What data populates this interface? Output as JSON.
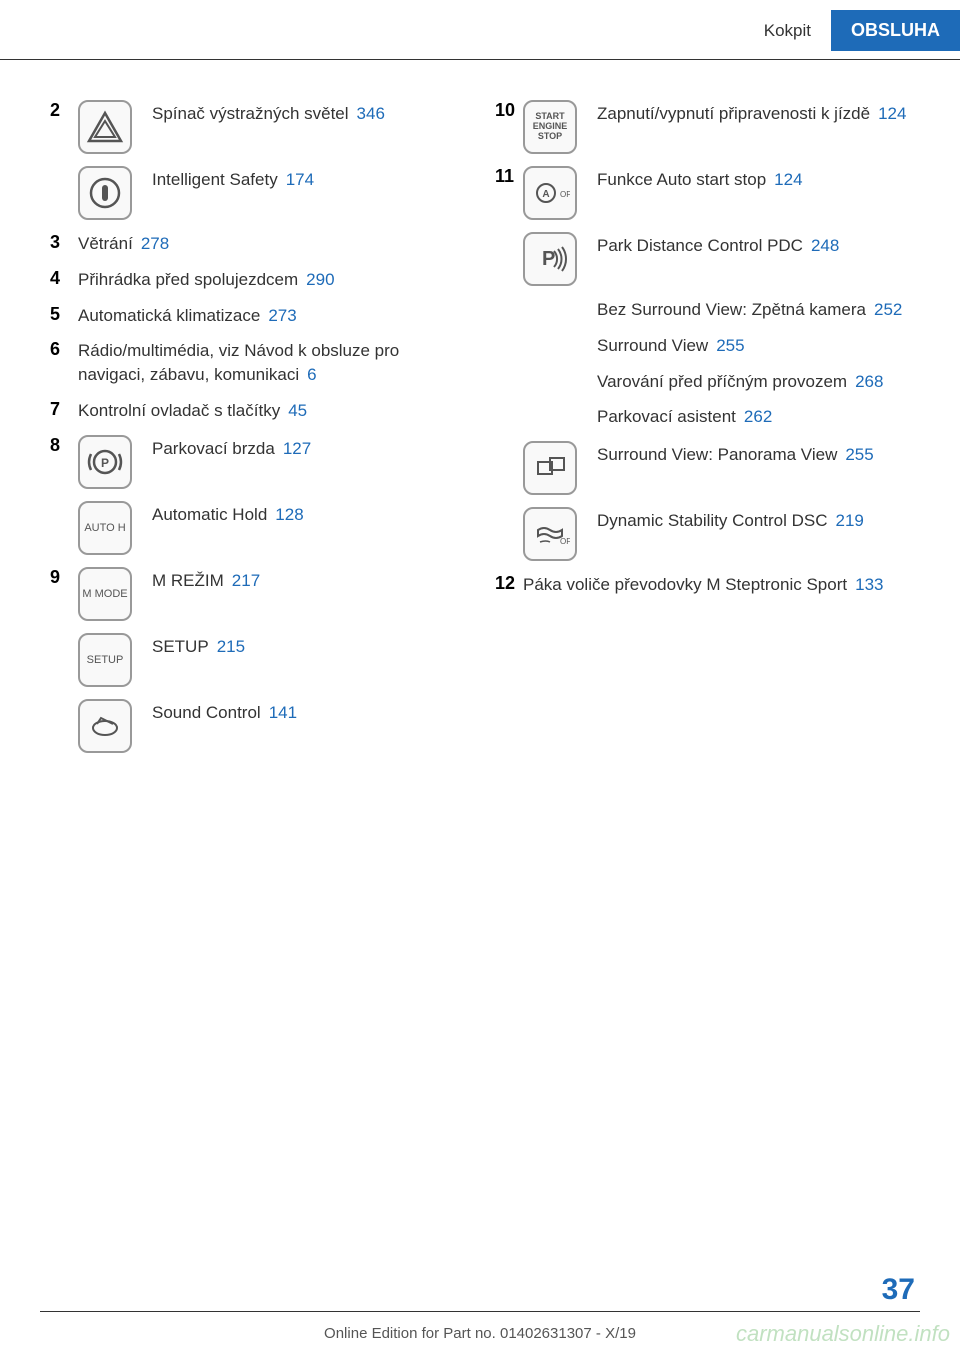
{
  "header": {
    "section": "Kokpit",
    "category": "OBSLUHA"
  },
  "left_column": [
    {
      "num": "2",
      "icon": "hazard-triangle",
      "text": "Spínač výstražných světel",
      "ref": "346"
    },
    {
      "num": "",
      "icon": "safety-circle",
      "text": "Intelligent Safety",
      "ref": "174"
    },
    {
      "num": "3",
      "icon": null,
      "text": "Větrání",
      "ref": "278"
    },
    {
      "num": "4",
      "icon": null,
      "text": "Přihrádka před spolujezdcem",
      "ref": "290"
    },
    {
      "num": "5",
      "icon": null,
      "text": "Automatická klimatizace",
      "ref": "273"
    },
    {
      "num": "6",
      "icon": null,
      "text": "Rádio/multimédia, viz Návod k obsluze pro navigaci, zábavu, komunikaci",
      "ref": "6"
    },
    {
      "num": "7",
      "icon": null,
      "text": "Kontrolní ovladač s tlačítky",
      "ref": "45"
    },
    {
      "num": "8",
      "icon": "parking-brake",
      "text": "Parkovací brzda",
      "ref": "127"
    },
    {
      "num": "",
      "icon": "auto-h",
      "text": "Automatic Hold",
      "ref": "128"
    },
    {
      "num": "9",
      "icon": "m-mode",
      "text": "M REŽIM",
      "ref": "217"
    },
    {
      "num": "",
      "icon": "setup",
      "text": "SETUP",
      "ref": "215"
    },
    {
      "num": "",
      "icon": "sound",
      "text": "Sound Control",
      "ref": "141"
    }
  ],
  "right_column": [
    {
      "num": "10",
      "icon": "start-stop",
      "text": "Zapnutí/vypnutí připravenosti k jízdě",
      "ref": "124"
    },
    {
      "num": "11",
      "icon": "a-off",
      "text": "Funkce Auto start stop",
      "ref": "124"
    },
    {
      "num": "",
      "icon": "pdc",
      "text": "Park Distance Control PDC",
      "ref": "248",
      "subitems": [
        {
          "text": "Bez Surround View: Zpětná ka­mera",
          "ref": "252"
        },
        {
          "text": "Surround View",
          "ref": "255"
        },
        {
          "text": "Varování před příčným provo­zem",
          "ref": "268"
        },
        {
          "text": "Parkovací asistent",
          "ref": "262"
        }
      ]
    },
    {
      "num": "",
      "icon": "panorama",
      "text": "Surround View: Panorama View",
      "ref": "255"
    },
    {
      "num": "",
      "icon": "dsc",
      "text": "Dynamic Stability Control DSC",
      "ref": "219"
    },
    {
      "num": "12",
      "icon": null,
      "text": "Páka voliče převodovky M Steptronic Sport",
      "ref": "133"
    }
  ],
  "page_number": "37",
  "footer": "Online Edition for Part no. 01402631307 - X/19",
  "watermark": "carmanualsonline.info"
}
